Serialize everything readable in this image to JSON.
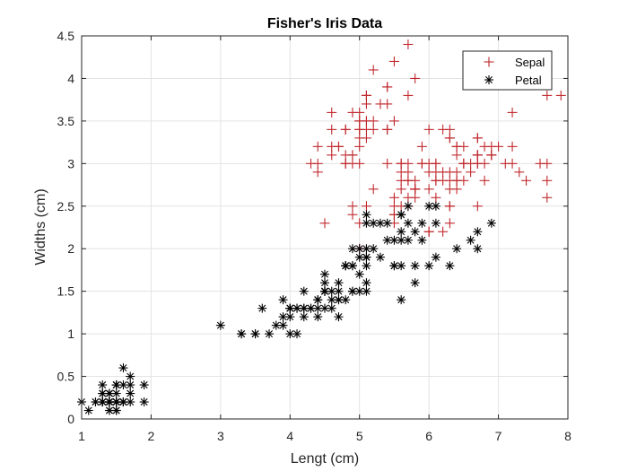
{
  "chart_data": {
    "type": "scatter",
    "title": "Fisher's Iris Data",
    "xlabel": "Lengt (cm)",
    "ylabel": "Widths (cm)",
    "xlim": [
      1,
      8
    ],
    "ylim": [
      0,
      4.5
    ],
    "xticks": [
      "1",
      "2",
      "3",
      "4",
      "5",
      "6",
      "7",
      "8"
    ],
    "yticks": [
      "0",
      "0.5",
      "1",
      "1.5",
      "2",
      "2.5",
      "3",
      "3.5",
      "4",
      "4.5"
    ],
    "grid": true,
    "legend_position": "top-right",
    "series": [
      {
        "name": "Sepal",
        "marker": "plus",
        "color": "#c0282d",
        "points": [
          [
            5.1,
            3.5
          ],
          [
            4.9,
            3.0
          ],
          [
            4.7,
            3.2
          ],
          [
            4.6,
            3.1
          ],
          [
            5.0,
            3.6
          ],
          [
            5.4,
            3.9
          ],
          [
            4.6,
            3.4
          ],
          [
            5.0,
            3.4
          ],
          [
            4.4,
            2.9
          ],
          [
            4.9,
            3.1
          ],
          [
            5.4,
            3.7
          ],
          [
            4.8,
            3.4
          ],
          [
            4.8,
            3.0
          ],
          [
            4.3,
            3.0
          ],
          [
            5.8,
            4.0
          ],
          [
            5.7,
            4.4
          ],
          [
            5.4,
            3.9
          ],
          [
            5.1,
            3.5
          ],
          [
            5.7,
            3.8
          ],
          [
            5.1,
            3.8
          ],
          [
            5.4,
            3.4
          ],
          [
            5.1,
            3.7
          ],
          [
            4.6,
            3.6
          ],
          [
            5.1,
            3.3
          ],
          [
            4.8,
            3.4
          ],
          [
            5.0,
            3.0
          ],
          [
            5.0,
            3.4
          ],
          [
            5.2,
            3.5
          ],
          [
            5.2,
            3.4
          ],
          [
            4.7,
            3.2
          ],
          [
            4.8,
            3.1
          ],
          [
            5.4,
            3.4
          ],
          [
            5.2,
            4.1
          ],
          [
            5.5,
            4.2
          ],
          [
            4.9,
            3.1
          ],
          [
            5.0,
            3.2
          ],
          [
            5.5,
            3.5
          ],
          [
            4.9,
            3.6
          ],
          [
            4.4,
            3.0
          ],
          [
            5.1,
            3.4
          ],
          [
            5.0,
            3.5
          ],
          [
            4.5,
            2.3
          ],
          [
            4.4,
            3.2
          ],
          [
            5.0,
            3.5
          ],
          [
            5.1,
            3.8
          ],
          [
            4.8,
            3.0
          ],
          [
            5.1,
            3.8
          ],
          [
            4.6,
            3.2
          ],
          [
            5.3,
            3.7
          ],
          [
            5.0,
            3.3
          ],
          [
            7.0,
            3.2
          ],
          [
            6.4,
            3.2
          ],
          [
            6.9,
            3.1
          ],
          [
            5.5,
            2.3
          ],
          [
            6.5,
            2.8
          ],
          [
            5.7,
            2.8
          ],
          [
            6.3,
            3.3
          ],
          [
            4.9,
            2.4
          ],
          [
            6.6,
            2.9
          ],
          [
            5.2,
            2.7
          ],
          [
            5.0,
            2.0
          ],
          [
            5.9,
            3.0
          ],
          [
            6.0,
            2.2
          ],
          [
            6.1,
            2.9
          ],
          [
            5.6,
            2.9
          ],
          [
            6.7,
            3.1
          ],
          [
            5.6,
            3.0
          ],
          [
            5.8,
            2.7
          ],
          [
            6.2,
            2.2
          ],
          [
            5.6,
            2.5
          ],
          [
            5.9,
            3.2
          ],
          [
            6.1,
            2.8
          ],
          [
            6.3,
            2.5
          ],
          [
            6.1,
            2.8
          ],
          [
            6.4,
            2.9
          ],
          [
            6.6,
            3.0
          ],
          [
            6.8,
            2.8
          ],
          [
            6.7,
            3.0
          ],
          [
            6.0,
            2.9
          ],
          [
            5.7,
            2.6
          ],
          [
            5.5,
            2.4
          ],
          [
            5.5,
            2.4
          ],
          [
            5.8,
            2.7
          ],
          [
            6.0,
            2.7
          ],
          [
            5.4,
            3.0
          ],
          [
            6.0,
            3.4
          ],
          [
            6.7,
            3.1
          ],
          [
            6.3,
            2.3
          ],
          [
            5.6,
            3.0
          ],
          [
            5.5,
            2.5
          ],
          [
            5.5,
            2.6
          ],
          [
            6.1,
            3.0
          ],
          [
            5.8,
            2.6
          ],
          [
            5.0,
            2.3
          ],
          [
            5.6,
            2.7
          ],
          [
            5.7,
            3.0
          ],
          [
            5.7,
            2.9
          ],
          [
            6.2,
            2.9
          ],
          [
            5.1,
            2.5
          ],
          [
            5.7,
            2.8
          ],
          [
            6.3,
            3.3
          ],
          [
            5.8,
            2.7
          ],
          [
            7.1,
            3.0
          ],
          [
            6.3,
            2.9
          ],
          [
            6.5,
            3.0
          ],
          [
            7.6,
            3.0
          ],
          [
            4.9,
            2.5
          ],
          [
            7.3,
            2.9
          ],
          [
            6.7,
            2.5
          ],
          [
            7.2,
            3.6
          ],
          [
            6.5,
            3.2
          ],
          [
            6.4,
            2.7
          ],
          [
            6.8,
            3.0
          ],
          [
            5.7,
            2.5
          ],
          [
            5.8,
            2.8
          ],
          [
            6.4,
            3.2
          ],
          [
            6.5,
            3.0
          ],
          [
            7.7,
            3.8
          ],
          [
            7.7,
            2.6
          ],
          [
            6.0,
            2.2
          ],
          [
            6.9,
            3.2
          ],
          [
            5.6,
            2.8
          ],
          [
            7.7,
            2.8
          ],
          [
            6.3,
            2.7
          ],
          [
            6.7,
            3.3
          ],
          [
            7.2,
            3.2
          ],
          [
            6.2,
            2.8
          ],
          [
            6.1,
            3.0
          ],
          [
            6.4,
            2.8
          ],
          [
            7.2,
            3.0
          ],
          [
            7.4,
            2.8
          ],
          [
            7.9,
            3.8
          ],
          [
            6.4,
            2.8
          ],
          [
            6.3,
            2.8
          ],
          [
            6.1,
            2.6
          ],
          [
            7.7,
            3.0
          ],
          [
            6.3,
            3.4
          ],
          [
            6.4,
            3.1
          ],
          [
            6.0,
            3.0
          ],
          [
            6.9,
            3.1
          ],
          [
            6.7,
            3.1
          ],
          [
            6.9,
            3.1
          ],
          [
            5.8,
            2.7
          ],
          [
            6.8,
            3.2
          ],
          [
            6.7,
            3.3
          ],
          [
            6.7,
            3.0
          ],
          [
            6.3,
            2.5
          ],
          [
            6.5,
            3.0
          ],
          [
            6.2,
            3.4
          ],
          [
            5.9,
            3.0
          ]
        ]
      },
      {
        "name": "Petal",
        "marker": "asterisk",
        "color": "#000000",
        "points": [
          [
            1.4,
            0.2
          ],
          [
            1.4,
            0.2
          ],
          [
            1.3,
            0.2
          ],
          [
            1.5,
            0.2
          ],
          [
            1.4,
            0.2
          ],
          [
            1.7,
            0.4
          ],
          [
            1.4,
            0.3
          ],
          [
            1.5,
            0.2
          ],
          [
            1.4,
            0.2
          ],
          [
            1.5,
            0.1
          ],
          [
            1.5,
            0.2
          ],
          [
            1.6,
            0.2
          ],
          [
            1.4,
            0.1
          ],
          [
            1.1,
            0.1
          ],
          [
            1.2,
            0.2
          ],
          [
            1.5,
            0.4
          ],
          [
            1.3,
            0.4
          ],
          [
            1.4,
            0.3
          ],
          [
            1.7,
            0.3
          ],
          [
            1.5,
            0.3
          ],
          [
            1.7,
            0.2
          ],
          [
            1.5,
            0.4
          ],
          [
            1.0,
            0.2
          ],
          [
            1.7,
            0.5
          ],
          [
            1.9,
            0.2
          ],
          [
            1.6,
            0.2
          ],
          [
            1.6,
            0.4
          ],
          [
            1.5,
            0.2
          ],
          [
            1.4,
            0.2
          ],
          [
            1.6,
            0.2
          ],
          [
            1.6,
            0.2
          ],
          [
            1.5,
            0.4
          ],
          [
            1.5,
            0.1
          ],
          [
            1.4,
            0.2
          ],
          [
            1.5,
            0.2
          ],
          [
            1.2,
            0.2
          ],
          [
            1.3,
            0.2
          ],
          [
            1.4,
            0.1
          ],
          [
            1.3,
            0.2
          ],
          [
            1.5,
            0.2
          ],
          [
            1.3,
            0.3
          ],
          [
            1.3,
            0.3
          ],
          [
            1.3,
            0.2
          ],
          [
            1.6,
            0.6
          ],
          [
            1.9,
            0.4
          ],
          [
            1.4,
            0.3
          ],
          [
            1.6,
            0.2
          ],
          [
            1.4,
            0.2
          ],
          [
            1.5,
            0.2
          ],
          [
            1.4,
            0.2
          ],
          [
            4.7,
            1.4
          ],
          [
            4.5,
            1.5
          ],
          [
            4.9,
            1.5
          ],
          [
            4.0,
            1.3
          ],
          [
            4.6,
            1.5
          ],
          [
            4.5,
            1.3
          ],
          [
            4.7,
            1.6
          ],
          [
            3.3,
            1.0
          ],
          [
            4.6,
            1.3
          ],
          [
            3.9,
            1.4
          ],
          [
            3.5,
            1.0
          ],
          [
            4.2,
            1.5
          ],
          [
            4.0,
            1.0
          ],
          [
            4.7,
            1.4
          ],
          [
            3.6,
            1.3
          ],
          [
            4.4,
            1.4
          ],
          [
            4.5,
            1.5
          ],
          [
            4.1,
            1.0
          ],
          [
            4.5,
            1.5
          ],
          [
            3.9,
            1.1
          ],
          [
            4.8,
            1.8
          ],
          [
            4.0,
            1.3
          ],
          [
            4.9,
            1.5
          ],
          [
            4.7,
            1.2
          ],
          [
            4.3,
            1.3
          ],
          [
            4.4,
            1.4
          ],
          [
            4.8,
            1.4
          ],
          [
            5.0,
            1.7
          ],
          [
            4.5,
            1.5
          ],
          [
            3.5,
            1.0
          ],
          [
            3.8,
            1.1
          ],
          [
            3.7,
            1.0
          ],
          [
            3.9,
            1.2
          ],
          [
            5.1,
            1.6
          ],
          [
            4.5,
            1.5
          ],
          [
            4.5,
            1.6
          ],
          [
            4.7,
            1.5
          ],
          [
            4.4,
            1.3
          ],
          [
            4.1,
            1.3
          ],
          [
            4.0,
            1.3
          ],
          [
            4.4,
            1.2
          ],
          [
            4.6,
            1.4
          ],
          [
            4.0,
            1.2
          ],
          [
            3.3,
            1.0
          ],
          [
            4.2,
            1.3
          ],
          [
            4.2,
            1.2
          ],
          [
            4.2,
            1.3
          ],
          [
            4.3,
            1.3
          ],
          [
            3.0,
            1.1
          ],
          [
            4.1,
            1.3
          ],
          [
            6.0,
            2.5
          ],
          [
            5.1,
            1.9
          ],
          [
            5.9,
            2.1
          ],
          [
            5.6,
            1.8
          ],
          [
            5.8,
            2.2
          ],
          [
            6.6,
            2.1
          ],
          [
            4.5,
            1.7
          ],
          [
            6.3,
            1.8
          ],
          [
            5.8,
            1.8
          ],
          [
            6.1,
            2.5
          ],
          [
            5.1,
            2.0
          ],
          [
            5.3,
            1.9
          ],
          [
            5.5,
            2.1
          ],
          [
            5.0,
            2.0
          ],
          [
            5.1,
            2.4
          ],
          [
            5.3,
            2.3
          ],
          [
            5.5,
            1.8
          ],
          [
            6.7,
            2.2
          ],
          [
            6.9,
            2.3
          ],
          [
            5.0,
            1.5
          ],
          [
            5.7,
            2.3
          ],
          [
            4.9,
            2.0
          ],
          [
            6.7,
            2.0
          ],
          [
            4.9,
            1.8
          ],
          [
            5.7,
            2.1
          ],
          [
            6.0,
            1.8
          ],
          [
            4.8,
            1.8
          ],
          [
            4.9,
            1.8
          ],
          [
            5.6,
            2.1
          ],
          [
            5.8,
            1.6
          ],
          [
            6.1,
            1.9
          ],
          [
            6.4,
            2.0
          ],
          [
            5.6,
            2.2
          ],
          [
            5.1,
            1.5
          ],
          [
            5.6,
            1.4
          ],
          [
            6.1,
            2.3
          ],
          [
            5.6,
            2.4
          ],
          [
            5.5,
            1.8
          ],
          [
            4.8,
            1.8
          ],
          [
            5.4,
            2.1
          ],
          [
            5.6,
            2.4
          ],
          [
            5.1,
            2.3
          ],
          [
            5.1,
            1.9
          ],
          [
            5.9,
            2.3
          ],
          [
            5.7,
            2.5
          ],
          [
            5.2,
            2.3
          ],
          [
            5.0,
            1.9
          ],
          [
            5.2,
            2.0
          ],
          [
            5.4,
            2.3
          ],
          [
            5.1,
            1.8
          ]
        ]
      }
    ]
  }
}
